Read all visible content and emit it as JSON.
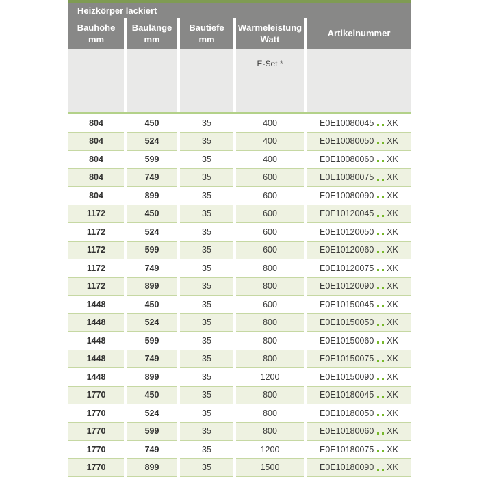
{
  "table": {
    "title": "Heizkörper lackiert",
    "columns": [
      {
        "line1": "Bauhöhe",
        "line2": "mm"
      },
      {
        "line1": "Baulänge",
        "line2": "mm"
      },
      {
        "line1": "Bautiefe",
        "line2": "mm"
      },
      {
        "line1": "Wärmeleistung",
        "line2": "Watt"
      },
      {
        "line1": "Artikelnummer",
        "line2": ""
      }
    ],
    "subheader": {
      "eset_label": "E-Set *"
    },
    "artikel_suffix": "XK",
    "rows": [
      {
        "bauhoehe": "804",
        "baulaenge": "450",
        "bautiefe": "35",
        "watt": "400",
        "artikel": "E0E10080045"
      },
      {
        "bauhoehe": "804",
        "baulaenge": "524",
        "bautiefe": "35",
        "watt": "400",
        "artikel": "E0E10080050"
      },
      {
        "bauhoehe": "804",
        "baulaenge": "599",
        "bautiefe": "35",
        "watt": "400",
        "artikel": "E0E10080060"
      },
      {
        "bauhoehe": "804",
        "baulaenge": "749",
        "bautiefe": "35",
        "watt": "600",
        "artikel": "E0E10080075"
      },
      {
        "bauhoehe": "804",
        "baulaenge": "899",
        "bautiefe": "35",
        "watt": "600",
        "artikel": "E0E10080090"
      },
      {
        "bauhoehe": "1172",
        "baulaenge": "450",
        "bautiefe": "35",
        "watt": "600",
        "artikel": "E0E10120045"
      },
      {
        "bauhoehe": "1172",
        "baulaenge": "524",
        "bautiefe": "35",
        "watt": "600",
        "artikel": "E0E10120050"
      },
      {
        "bauhoehe": "1172",
        "baulaenge": "599",
        "bautiefe": "35",
        "watt": "600",
        "artikel": "E0E10120060"
      },
      {
        "bauhoehe": "1172",
        "baulaenge": "749",
        "bautiefe": "35",
        "watt": "800",
        "artikel": "E0E10120075"
      },
      {
        "bauhoehe": "1172",
        "baulaenge": "899",
        "bautiefe": "35",
        "watt": "800",
        "artikel": "E0E10120090"
      },
      {
        "bauhoehe": "1448",
        "baulaenge": "450",
        "bautiefe": "35",
        "watt": "600",
        "artikel": "E0E10150045"
      },
      {
        "bauhoehe": "1448",
        "baulaenge": "524",
        "bautiefe": "35",
        "watt": "800",
        "artikel": "E0E10150050"
      },
      {
        "bauhoehe": "1448",
        "baulaenge": "599",
        "bautiefe": "35",
        "watt": "800",
        "artikel": "E0E10150060"
      },
      {
        "bauhoehe": "1448",
        "baulaenge": "749",
        "bautiefe": "35",
        "watt": "800",
        "artikel": "E0E10150075"
      },
      {
        "bauhoehe": "1448",
        "baulaenge": "899",
        "bautiefe": "35",
        "watt": "1200",
        "artikel": "E0E10150090"
      },
      {
        "bauhoehe": "1770",
        "baulaenge": "450",
        "bautiefe": "35",
        "watt": "800",
        "artikel": "E0E10180045"
      },
      {
        "bauhoehe": "1770",
        "baulaenge": "524",
        "bautiefe": "35",
        "watt": "800",
        "artikel": "E0E10180050"
      },
      {
        "bauhoehe": "1770",
        "baulaenge": "599",
        "bautiefe": "35",
        "watt": "800",
        "artikel": "E0E10180060"
      },
      {
        "bauhoehe": "1770",
        "baulaenge": "749",
        "bautiefe": "35",
        "watt": "1200",
        "artikel": "E0E10180075"
      },
      {
        "bauhoehe": "1770",
        "baulaenge": "899",
        "bautiefe": "35",
        "watt": "1500",
        "artikel": "E0E10180090"
      }
    ]
  },
  "colors": {
    "top_strip_green": "#7f9b53",
    "header_gray": "#888887",
    "subheader_gray": "#e9e9e8",
    "divider_green": "#b3d189",
    "row_alt_green": "#eef2e1",
    "row_border_green": "#c6d8a3",
    "dot_green": "#76b82a",
    "text_dark": "#3c3c3b"
  }
}
